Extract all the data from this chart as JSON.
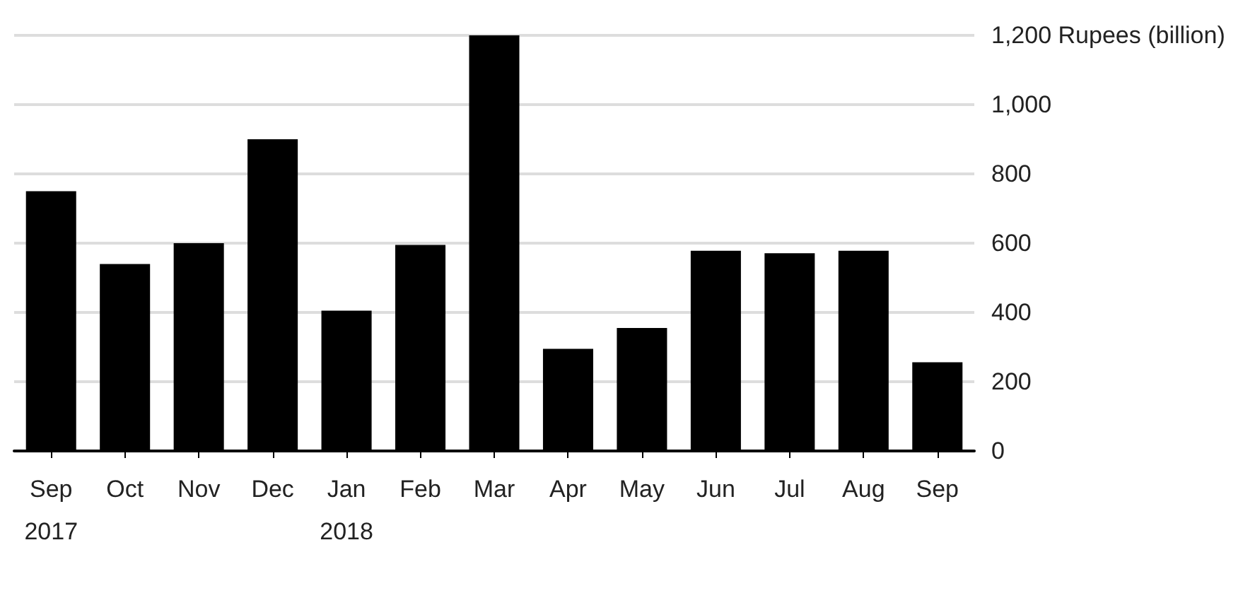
{
  "chart_data": {
    "type": "bar",
    "categories": [
      "Sep\n2017",
      "Oct",
      "Nov",
      "Dec",
      "Jan\n2018",
      "Feb",
      "Mar",
      "Apr",
      "May",
      "Jun",
      "Jul",
      "Aug",
      "Sep"
    ],
    "values": [
      750,
      540,
      600,
      900,
      405,
      595,
      1200,
      295,
      355,
      578,
      571,
      578,
      256
    ],
    "color": "#000000",
    "ylim": [
      0,
      1200
    ],
    "yticks": [
      0,
      200,
      400,
      600,
      800,
      {
        "value": 1000,
        "label": "1,000"
      },
      {
        "value": 1200,
        "label": "1,200 Rupees (billion)"
      }
    ],
    "grid": "y"
  }
}
